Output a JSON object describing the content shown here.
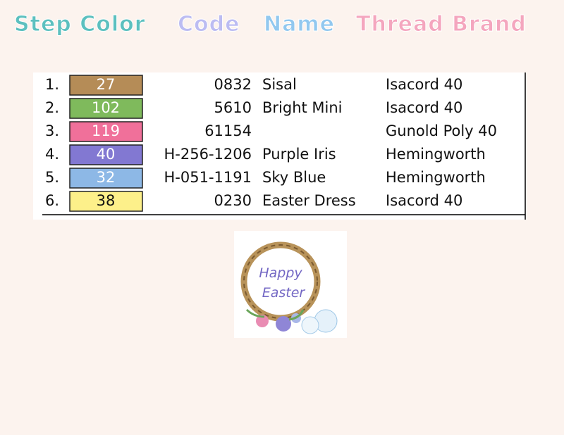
{
  "header": {
    "step_color": "Step Color",
    "code": "Code",
    "name": "Name",
    "thread_brand": "Thread Brand"
  },
  "table": {
    "rows": [
      {
        "step": "1.",
        "color_number": "27",
        "color": "#b58c57",
        "code": "0832",
        "name": "Sisal",
        "brand": "Isacord 40"
      },
      {
        "step": "2.",
        "color_number": "102",
        "color": "#7fba5c",
        "code": "5610",
        "name": "Bright Mini",
        "brand": "Isacord 40"
      },
      {
        "step": "3.",
        "color_number": "119",
        "color": "#f0709a",
        "code": "61154",
        "name": null,
        "brand": "Gunold Poly 40"
      },
      {
        "step": "4.",
        "color_number": "40",
        "color": "#8278d2",
        "code": "H-256-1206",
        "name": "Purple Iris",
        "brand": "Hemingworth"
      },
      {
        "step": "5.",
        "color_number": "32",
        "color": "#8db8e6",
        "code": "H-051-1191",
        "name": "Sky Blue",
        "brand": "Hemingworth"
      },
      {
        "step": "6.",
        "color_number": "38",
        "color": "#fdf08a",
        "code": "0230",
        "name": "Easter Dress",
        "brand": "Isacord 40"
      }
    ]
  },
  "image": {
    "text": [
      "Happy",
      "Easter"
    ]
  }
}
